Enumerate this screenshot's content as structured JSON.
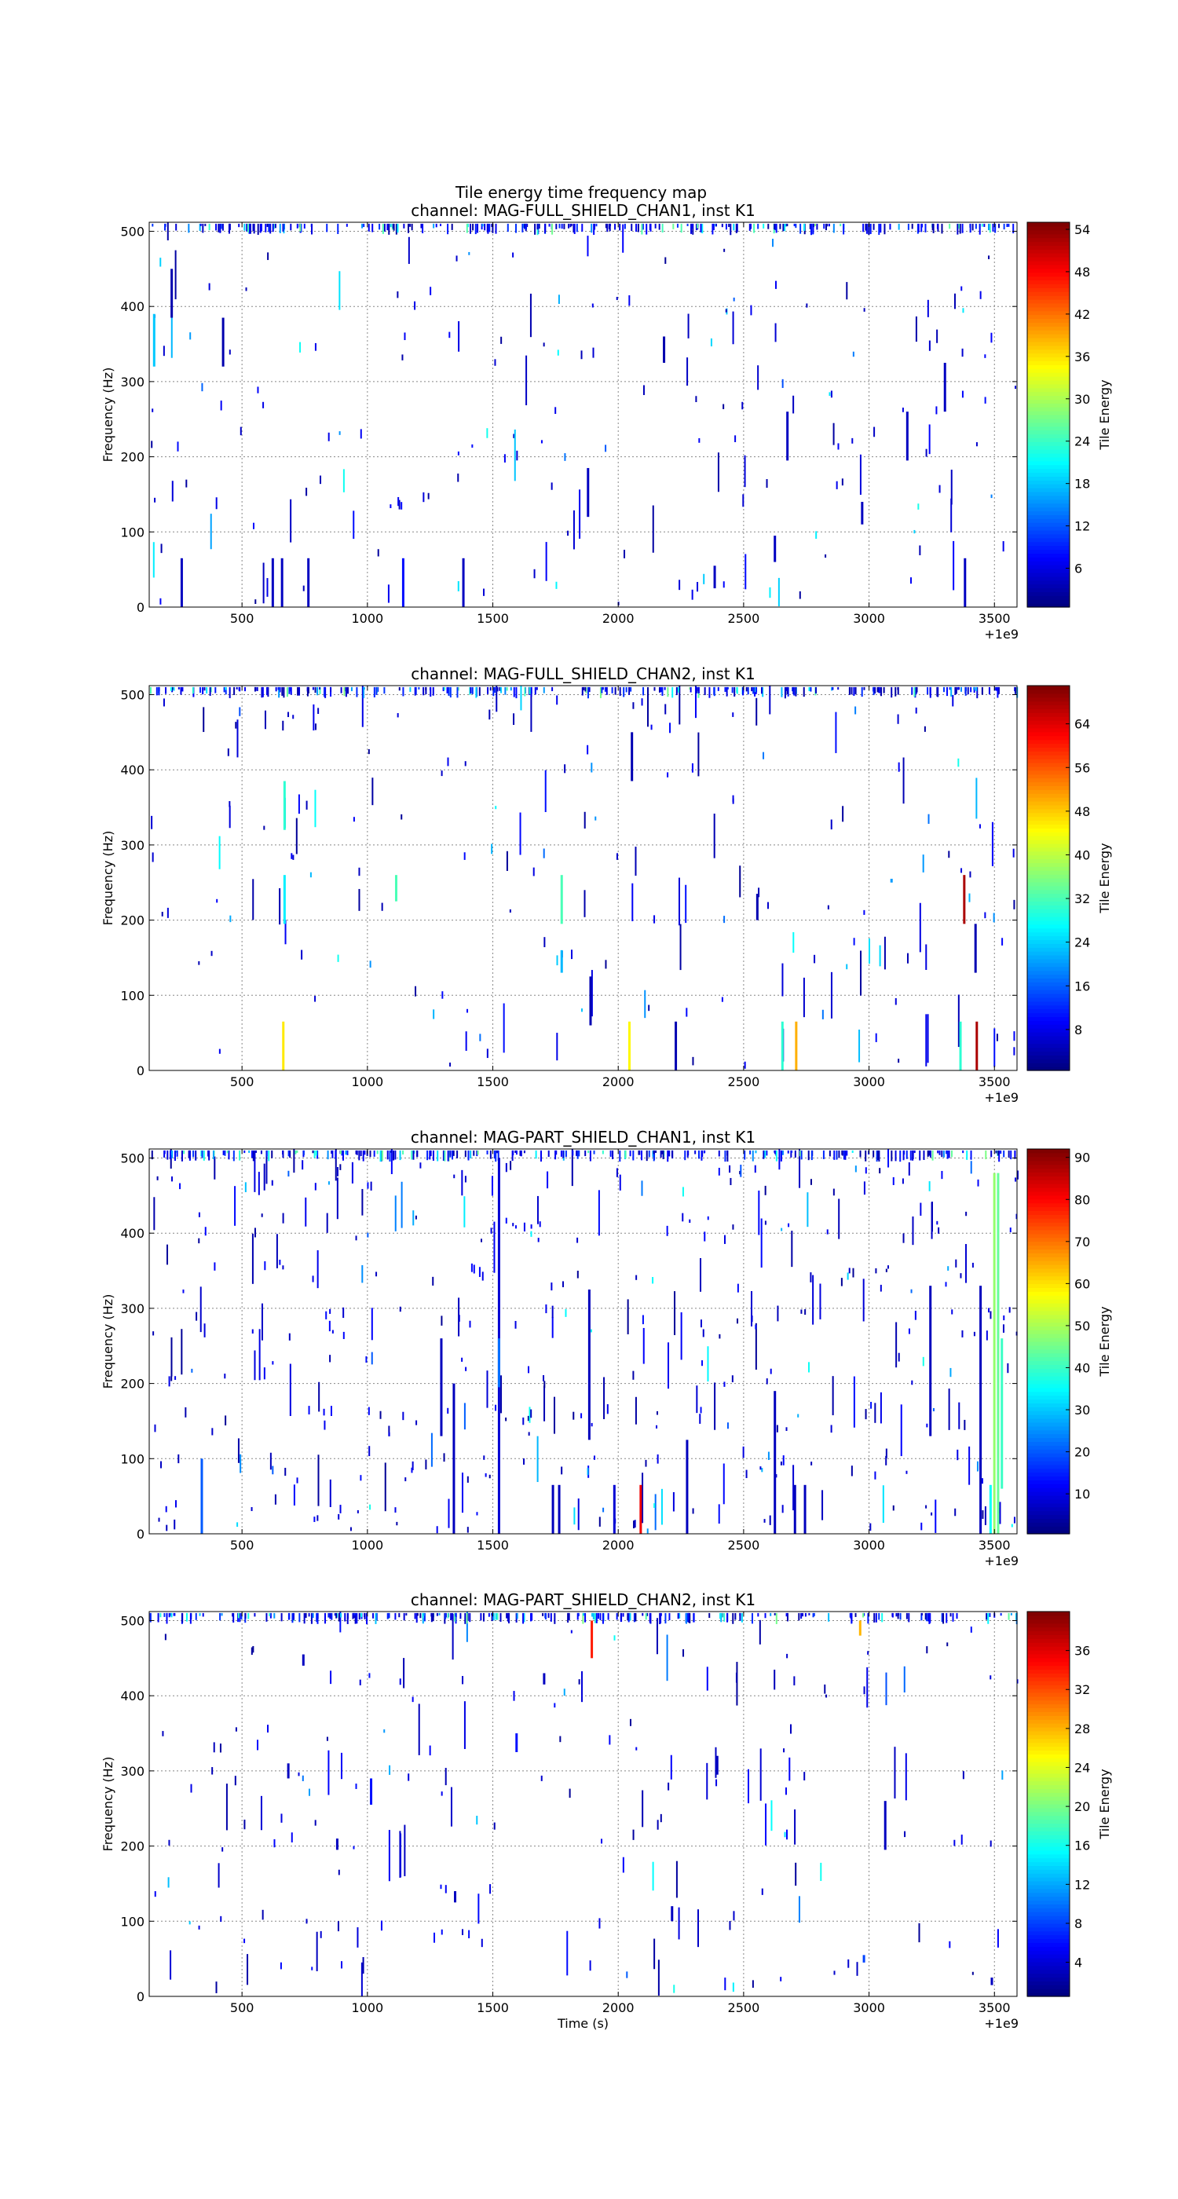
{
  "figure": {
    "title": "Tile energy time frequency map"
  },
  "chart_data": [
    {
      "type": "heatmap",
      "title": "channel: MAG-FULL_SHIELD_CHAN1, inst K1",
      "ylabel": "Frequency (Hz)",
      "xlabel": "",
      "x_offset_label": "+1e9",
      "xlim": [
        130,
        3590
      ],
      "ylim": [
        0,
        512
      ],
      "xticks": [
        500,
        1000,
        1500,
        2000,
        2500,
        3000,
        3500
      ],
      "yticks": [
        0,
        100,
        200,
        300,
        400,
        500
      ],
      "grid": true,
      "colorbar": {
        "label": "Tile Energy",
        "range": [
          0.5,
          55
        ],
        "ticks": [
          6,
          12,
          18,
          24,
          30,
          36,
          42,
          48,
          54
        ]
      },
      "tiles": [
        {
          "t": 145,
          "f0": 320,
          "f1": 390,
          "e": 18
        },
        {
          "t": 215,
          "f0": 385,
          "f1": 450,
          "e": 3
        },
        {
          "t": 255,
          "f0": 0,
          "f1": 65,
          "e": 4
        },
        {
          "t": 420,
          "f0": 320,
          "f1": 385,
          "e": 3
        },
        {
          "t": 618,
          "f0": 0,
          "f1": 65,
          "e": 4
        },
        {
          "t": 655,
          "f0": 0,
          "f1": 65,
          "e": 4
        },
        {
          "t": 760,
          "f0": 0,
          "f1": 65,
          "e": 4
        },
        {
          "t": 1138,
          "f0": 0,
          "f1": 65,
          "e": 8
        },
        {
          "t": 1378,
          "f0": 0,
          "f1": 65,
          "e": 4
        },
        {
          "t": 1875,
          "f0": 120,
          "f1": 185,
          "e": 4
        },
        {
          "t": 2178,
          "f0": 325,
          "f1": 360,
          "e": 3
        },
        {
          "t": 2670,
          "f0": 195,
          "f1": 260,
          "e": 4
        },
        {
          "t": 2968,
          "f0": 110,
          "f1": 140,
          "e": 4
        },
        {
          "t": 3148,
          "f0": 195,
          "f1": 260,
          "e": 4
        },
        {
          "t": 3298,
          "f0": 260,
          "f1": 325,
          "e": 4
        },
        {
          "t": 3378,
          "f0": 0,
          "f1": 65,
          "e": 4
        },
        {
          "t": 2620,
          "f0": 60,
          "f1": 95,
          "e": 4
        },
        {
          "t": 2380,
          "f0": 25,
          "f1": 55,
          "e": 4
        }
      ]
    },
    {
      "type": "heatmap",
      "title": "channel: MAG-FULL_SHIELD_CHAN2, inst K1",
      "ylabel": "Frequency (Hz)",
      "xlabel": "",
      "x_offset_label": "+1e9",
      "xlim": [
        130,
        3590
      ],
      "ylim": [
        0,
        512
      ],
      "xticks": [
        500,
        1000,
        1500,
        2000,
        2500,
        3000,
        3500
      ],
      "yticks": [
        0,
        100,
        200,
        300,
        400,
        500
      ],
      "grid": true,
      "colorbar": {
        "label": "Tile Energy",
        "range": [
          0.5,
          71
        ],
        "ticks": [
          8,
          16,
          24,
          32,
          40,
          48,
          56,
          64
        ]
      },
      "tiles": [
        {
          "t": 660,
          "f0": 0,
          "f1": 65,
          "e": 46
        },
        {
          "t": 665,
          "f0": 320,
          "f1": 385,
          "e": 30
        },
        {
          "t": 665,
          "f0": 195,
          "f1": 260,
          "e": 26
        },
        {
          "t": 1110,
          "f0": 225,
          "f1": 260,
          "e": 32
        },
        {
          "t": 1770,
          "f0": 195,
          "f1": 260,
          "e": 32
        },
        {
          "t": 1770,
          "f0": 130,
          "f1": 160,
          "e": 22
        },
        {
          "t": 1885,
          "f0": 60,
          "f1": 125,
          "e": 4
        },
        {
          "t": 2040,
          "f0": 0,
          "f1": 65,
          "e": 45
        },
        {
          "t": 2050,
          "f0": 385,
          "f1": 450,
          "e": 4
        },
        {
          "t": 2650,
          "f0": 0,
          "f1": 65,
          "e": 30
        },
        {
          "t": 2705,
          "f0": 0,
          "f1": 65,
          "e": 50
        },
        {
          "t": 3375,
          "f0": 195,
          "f1": 260,
          "e": 68
        },
        {
          "t": 3360,
          "f0": 0,
          "f1": 65,
          "e": 30
        },
        {
          "t": 3425,
          "f0": 0,
          "f1": 65,
          "e": 68
        },
        {
          "t": 3420,
          "f0": 130,
          "f1": 195,
          "e": 4
        },
        {
          "t": 3085,
          "f0": 250,
          "f1": 255,
          "e": 20
        },
        {
          "t": 2225,
          "f0": 0,
          "f1": 65,
          "e": 4
        },
        {
          "t": 2550,
          "f0": 200,
          "f1": 235,
          "e": 4
        }
      ]
    },
    {
      "type": "heatmap",
      "title": "channel: MAG-PART_SHIELD_CHAN1, inst K1",
      "ylabel": "Frequency (Hz)",
      "xlabel": "",
      "x_offset_label": "+1e9",
      "xlim": [
        130,
        3590
      ],
      "ylim": [
        0,
        512
      ],
      "xticks": [
        500,
        1000,
        1500,
        2000,
        2500,
        3000,
        3500
      ],
      "yticks": [
        0,
        100,
        200,
        300,
        400,
        500
      ],
      "grid": true,
      "colorbar": {
        "label": "Tile Energy",
        "range": [
          0.5,
          92
        ],
        "ticks": [
          10,
          20,
          30,
          40,
          50,
          60,
          70,
          80,
          90
        ]
      },
      "tiles": [
        {
          "t": 2085,
          "f0": 0,
          "f1": 65,
          "e": 82
        },
        {
          "t": 3495,
          "f0": 0,
          "f1": 480,
          "e": 48
        },
        {
          "t": 3510,
          "f0": 0,
          "f1": 480,
          "e": 44
        },
        {
          "t": 3480,
          "f0": 0,
          "f1": 65,
          "e": 35
        },
        {
          "t": 3525,
          "f0": 60,
          "f1": 260,
          "e": 40
        },
        {
          "t": 1340,
          "f0": 0,
          "f1": 200,
          "e": 6
        },
        {
          "t": 1520,
          "f0": 0,
          "f1": 500,
          "e": 8
        },
        {
          "t": 1735,
          "f0": 0,
          "f1": 65,
          "e": 6
        },
        {
          "t": 1760,
          "f0": 0,
          "f1": 65,
          "e": 6
        },
        {
          "t": 1880,
          "f0": 125,
          "f1": 325,
          "e": 6
        },
        {
          "t": 2620,
          "f0": 0,
          "f1": 190,
          "e": 6
        },
        {
          "t": 2700,
          "f0": 0,
          "f1": 65,
          "e": 6
        },
        {
          "t": 2740,
          "f0": 0,
          "f1": 65,
          "e": 6
        },
        {
          "t": 335,
          "f0": 0,
          "f1": 100,
          "e": 20
        },
        {
          "t": 1290,
          "f0": 130,
          "f1": 260,
          "e": 6
        },
        {
          "t": 3440,
          "f0": 0,
          "f1": 330,
          "e": 6
        },
        {
          "t": 1520,
          "f0": 195,
          "f1": 260,
          "e": 22
        },
        {
          "t": 1980,
          "f0": 0,
          "f1": 65,
          "e": 8
        },
        {
          "t": 2270,
          "f0": 0,
          "f1": 125,
          "e": 6
        },
        {
          "t": 3240,
          "f0": 130,
          "f1": 330,
          "e": 6
        }
      ]
    },
    {
      "type": "heatmap",
      "title": "channel: MAG-PART_SHIELD_CHAN2, inst K1",
      "ylabel": "Frequency (Hz)",
      "xlabel": "Time (s)",
      "x_offset_label": "+1e9",
      "xlim": [
        130,
        3590
      ],
      "ylim": [
        0,
        512
      ],
      "xticks": [
        500,
        1000,
        1500,
        2000,
        2500,
        3000,
        3500
      ],
      "yticks": [
        0,
        100,
        200,
        300,
        400,
        500
      ],
      "grid": true,
      "colorbar": {
        "label": "Tile Energy",
        "range": [
          0.5,
          40
        ],
        "ticks": [
          4,
          8,
          12,
          16,
          20,
          24,
          28,
          32,
          36
        ]
      },
      "tiles": [
        {
          "t": 1890,
          "f0": 450,
          "f1": 500,
          "e": 34
        },
        {
          "t": 2960,
          "f0": 480,
          "f1": 500,
          "e": 28
        },
        {
          "t": 1010,
          "f0": 255,
          "f1": 290,
          "e": 6
        },
        {
          "t": 1590,
          "f0": 325,
          "f1": 350,
          "e": 6
        },
        {
          "t": 680,
          "f0": 290,
          "f1": 310,
          "e": 3
        },
        {
          "t": 2390,
          "f0": 295,
          "f1": 320,
          "e": 3
        },
        {
          "t": 875,
          "f0": 195,
          "f1": 210,
          "e": 3
        },
        {
          "t": 1345,
          "f0": 125,
          "f1": 140,
          "e": 3
        },
        {
          "t": 740,
          "f0": 440,
          "f1": 455,
          "e": 3
        },
        {
          "t": 3060,
          "f0": 195,
          "f1": 260,
          "e": 3
        },
        {
          "t": 2975,
          "f0": 45,
          "f1": 55,
          "e": 8
        },
        {
          "t": 3485,
          "f0": 15,
          "f1": 25,
          "e": 3
        },
        {
          "t": 1700,
          "f0": 415,
          "f1": 430,
          "e": 3
        },
        {
          "t": 2210,
          "f0": 100,
          "f1": 120,
          "e": 3
        }
      ]
    }
  ]
}
